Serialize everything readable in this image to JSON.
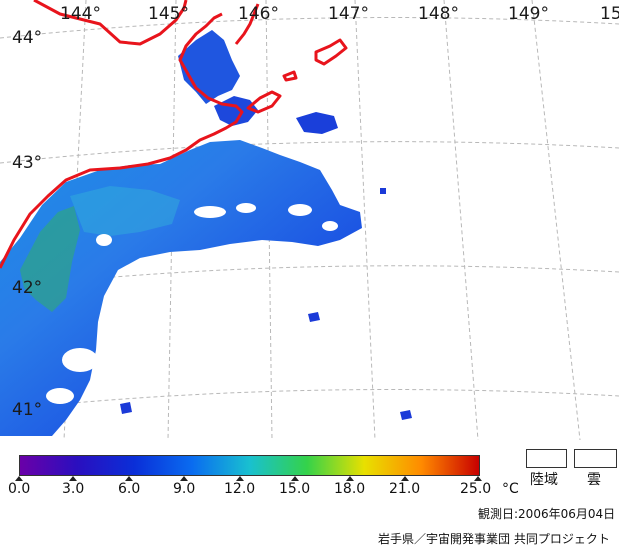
{
  "map": {
    "longitude_labels": [
      "144°",
      "145°",
      "146°",
      "147°",
      "148°",
      "149°",
      "15"
    ],
    "latitude_labels": [
      "44°",
      "43°",
      "42°",
      "41°"
    ],
    "coastline_color": "#e8141c",
    "grid_color": "#b8b8b8"
  },
  "legend": {
    "unit": "°C",
    "tick_labels": [
      "0.0",
      "3.0",
      "6.0",
      "9.0",
      "12.0",
      "15.0",
      "18.0",
      "21.0",
      "25.0"
    ],
    "colorscale": [
      "#6a00a8",
      "#2a0fbf",
      "#0a2fd8",
      "#0a6cf0",
      "#19c0d0",
      "#34d24a",
      "#e8e000",
      "#ff8a00",
      "#c80000"
    ],
    "land_label": "陸域",
    "cloud_label": "雲"
  },
  "footer": {
    "observation_date": "観測日:2006年06月04日",
    "credit": "岩手県／宇宙開発事業団 共同プロジェクト"
  }
}
